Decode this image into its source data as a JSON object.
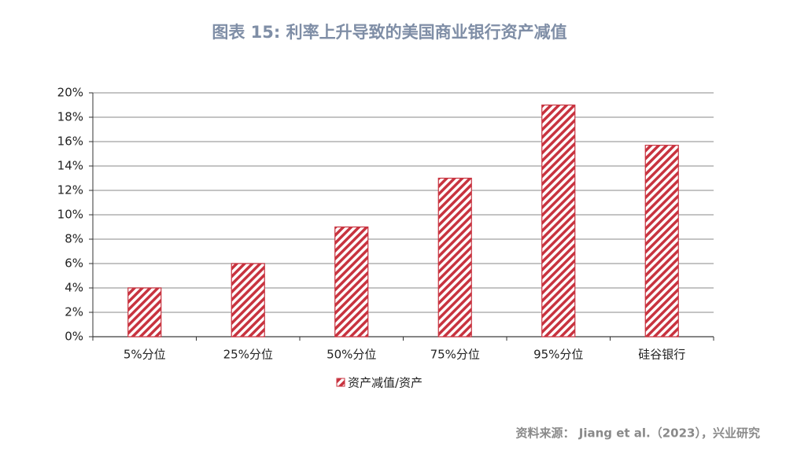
{
  "chart_data": {
    "type": "bar",
    "title": "图表 15: 利率上升导致的美国商业银行资产减值",
    "categories": [
      "5%分位",
      "25%分位",
      "50%分位",
      "75%分位",
      "95%分位",
      "硅谷银行"
    ],
    "series": [
      {
        "name": "资产减值/资产",
        "color": "#c8333f",
        "values": [
          4,
          6,
          9,
          13,
          19,
          15.7
        ]
      }
    ],
    "ylim": [
      0,
      20
    ],
    "yticks": [
      {
        "value": 0,
        "label": "0%"
      },
      {
        "value": 2,
        "label": "2%"
      },
      {
        "value": 4,
        "label": "4%"
      },
      {
        "value": 6,
        "label": "6%"
      },
      {
        "value": 8,
        "label": "8%"
      },
      {
        "value": 10,
        "label": "10%"
      },
      {
        "value": 12,
        "label": "12%"
      },
      {
        "value": 14,
        "label": "14%"
      },
      {
        "value": 16,
        "label": "16%"
      },
      {
        "value": 18,
        "label": "18%"
      },
      {
        "value": 20,
        "label": "20%"
      }
    ],
    "grid": true,
    "source": "资料来源：  Jiang et al.（2023），兴业研究"
  }
}
